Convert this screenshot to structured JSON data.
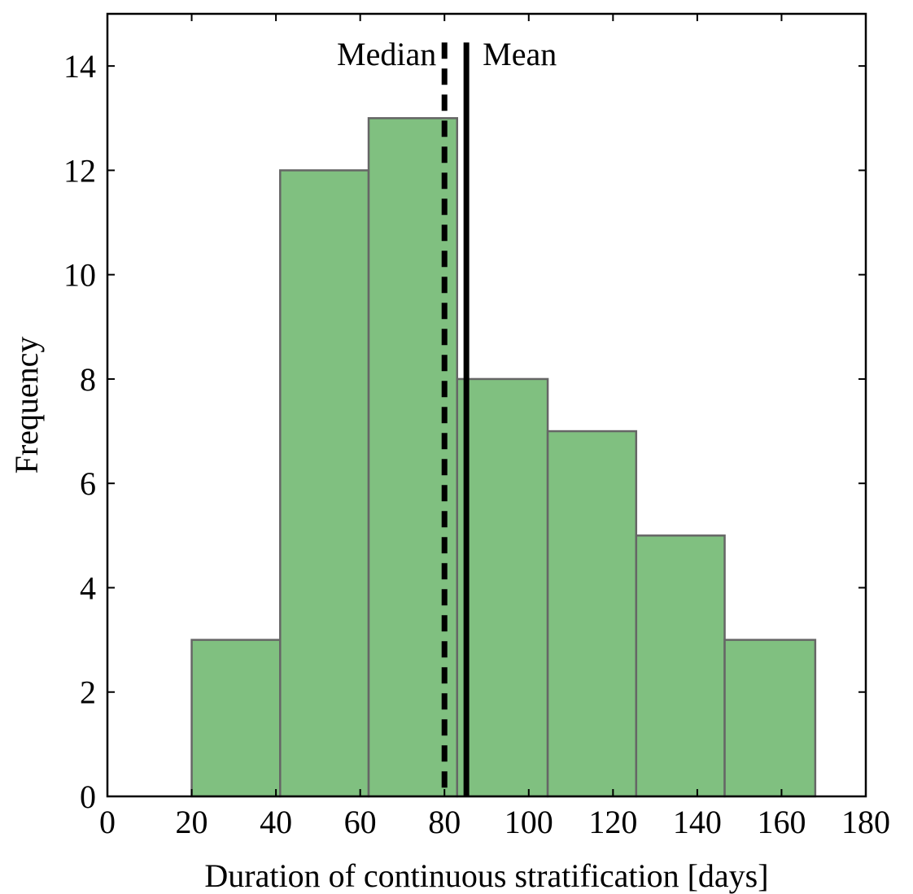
{
  "chart_data": {
    "type": "bar",
    "subtype": "histogram",
    "xlabel": "Duration of continuous stratification [days]",
    "ylabel": "Frequency",
    "xlim": [
      0,
      180
    ],
    "ylim": [
      0,
      15
    ],
    "xticks": [
      0,
      20,
      40,
      60,
      80,
      100,
      120,
      140,
      160,
      180
    ],
    "yticks": [
      0,
      2,
      4,
      6,
      8,
      10,
      12,
      14
    ],
    "bins": [
      {
        "x0": 20,
        "x1": 41,
        "count": 3
      },
      {
        "x0": 41,
        "x1": 62,
        "count": 12
      },
      {
        "x0": 62,
        "x1": 83,
        "count": 13
      },
      {
        "x0": 83,
        "x1": 104.5,
        "count": 8
      },
      {
        "x0": 104.5,
        "x1": 125.5,
        "count": 7
      },
      {
        "x0": 125.5,
        "x1": 146.5,
        "count": 5
      },
      {
        "x0": 146.5,
        "x1": 168,
        "count": 3
      }
    ],
    "bar_color": "#80c080",
    "bar_edge_color": "#666666",
    "reference_lines": [
      {
        "label": "Median",
        "x": 80,
        "style": "dashed",
        "color": "#000000"
      },
      {
        "label": "Mean",
        "x": 85.2,
        "style": "solid",
        "color": "#000000"
      }
    ],
    "grid": false
  }
}
